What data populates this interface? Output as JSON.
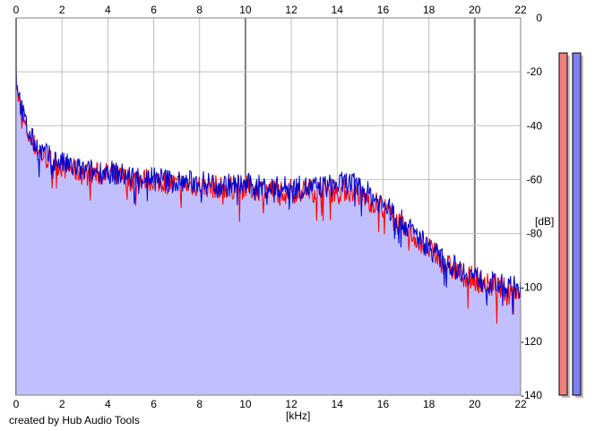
{
  "credit_text": "created by Hub Audio Tools",
  "chart_data": {
    "type": "area",
    "title": "",
    "xlabel": "[kHz]",
    "ylabel": "[dB]",
    "xlim": [
      0,
      22
    ],
    "ylim": [
      -140,
      0
    ],
    "x_ticks": [
      0,
      2,
      4,
      6,
      8,
      10,
      12,
      14,
      16,
      18,
      20,
      22
    ],
    "y_ticks": [
      0,
      -20,
      -40,
      -60,
      -80,
      -100,
      -120,
      -140
    ],
    "grid": true,
    "legend": "none",
    "colors": {
      "fill": "#c0c0ff",
      "series_a": "#ff0000",
      "series_b": "#0000cc",
      "grid_minor": "#c0c0c0",
      "grid_major": "#808080",
      "meter_a": "#f08080",
      "meter_b": "#8080f0"
    },
    "series": [
      {
        "color": "#ff0000",
        "x": [
          0,
          0.1,
          0.3,
          0.6,
          1,
          1.5,
          2,
          3,
          4,
          5,
          6,
          7,
          8,
          9,
          10,
          11,
          12,
          13,
          14,
          14.5,
          15,
          15.5,
          16,
          16.5,
          17,
          17.5,
          18,
          18.5,
          19,
          19.5,
          20,
          20.5,
          21,
          21.5,
          22
        ],
        "values": [
          -22,
          -30,
          -38,
          -45,
          -50,
          -53,
          -55,
          -58,
          -58,
          -60,
          -60,
          -62,
          -62,
          -63,
          -63,
          -64,
          -64,
          -64,
          -64,
          -64,
          -66,
          -68,
          -70,
          -75,
          -79,
          -82,
          -86,
          -90,
          -93,
          -95,
          -97,
          -99,
          -100,
          -101,
          -101
        ]
      },
      {
        "color": "#0000cc",
        "x": [
          0,
          0.1,
          0.3,
          0.6,
          1,
          1.5,
          2,
          3,
          4,
          5,
          6,
          7,
          8,
          9,
          10,
          11,
          12,
          13,
          14,
          14.5,
          15,
          15.5,
          16,
          16.5,
          17,
          17.5,
          18,
          18.5,
          19,
          19.5,
          20,
          20.5,
          21,
          21.5,
          22
        ],
        "values": [
          -20,
          -28,
          -36,
          -44,
          -49,
          -52,
          -54,
          -57,
          -57,
          -59,
          -59,
          -61,
          -61,
          -62,
          -62,
          -63,
          -63,
          -63,
          -62,
          -61,
          -63,
          -66,
          -69,
          -73,
          -77,
          -81,
          -85,
          -89,
          -92,
          -94,
          -96,
          -98,
          -99,
          -100,
          -100
        ]
      }
    ],
    "level_meters": [
      {
        "color": "#f08080",
        "level_db": -13
      },
      {
        "color": "#8080f0",
        "level_db": -13
      }
    ]
  }
}
